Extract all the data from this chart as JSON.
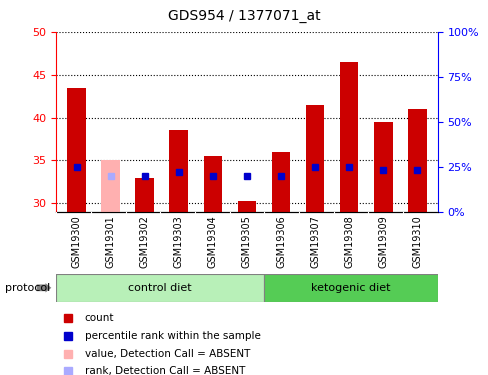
{
  "title": "GDS954 / 1377071_at",
  "samples": [
    "GSM19300",
    "GSM19301",
    "GSM19302",
    "GSM19303",
    "GSM19304",
    "GSM19305",
    "GSM19306",
    "GSM19307",
    "GSM19308",
    "GSM19309",
    "GSM19310"
  ],
  "values": [
    43.5,
    35.0,
    33.0,
    38.5,
    35.5,
    30.3,
    36.0,
    41.5,
    46.5,
    39.5,
    41.0
  ],
  "ranks_pct": [
    25,
    20,
    20,
    22,
    20,
    20,
    20,
    25,
    25,
    23,
    23
  ],
  "absent": [
    false,
    true,
    false,
    false,
    false,
    false,
    false,
    false,
    false,
    false,
    false
  ],
  "ylim_left": [
    29,
    50
  ],
  "ylim_right": [
    0,
    100
  ],
  "yticks_left": [
    30,
    35,
    40,
    45,
    50
  ],
  "yticks_right": [
    0,
    25,
    50,
    75,
    100
  ],
  "bar_color_present": "#cc0000",
  "bar_color_absent": "#ffb0b0",
  "rank_color_present": "#0000cc",
  "rank_color_absent": "#aaaaff",
  "control_diet_color": "#b8f0b8",
  "ketogenic_diet_color": "#55cc55",
  "n_control": 6,
  "n_ketogenic": 5
}
